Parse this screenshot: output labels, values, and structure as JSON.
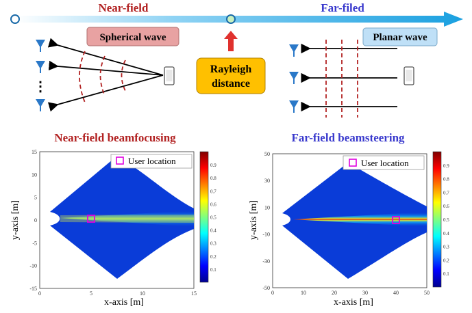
{
  "top": {
    "near_field_label": "Near-field",
    "far_field_label": "Far-filed",
    "spherical_wave_label": "Spherical wave",
    "planar_wave_label": "Planar wave",
    "rayleigh_line1": "Rayleigh",
    "rayleigh_line2": "distance",
    "ellipsis": "⋮"
  },
  "colors": {
    "near_red": "#b22222",
    "far_blue": "#3a3acd",
    "axis_arrow": "#1aa0e0",
    "spherical_bg": "#e8a2a2",
    "planar_bg": "#bfe0f7",
    "rayleigh_bg": "#ffc000",
    "wave_red": "#b22222"
  },
  "chart_data": [
    {
      "type": "heatmap",
      "title": "Near-field beamfocusing",
      "xlabel": "x-axis [m]",
      "ylabel": "y-axis [m]",
      "xlim": [
        0,
        15
      ],
      "ylim": [
        -15,
        15
      ],
      "xticks": [
        "0",
        "5",
        "10",
        "15"
      ],
      "yticks": [
        "15",
        "10",
        "5",
        "0",
        "-5",
        "-10",
        "-15"
      ],
      "colorbar_ticks": [
        "0.9",
        "0.8",
        "0.7",
        "0.6",
        "0.5",
        "0.4",
        "0.3",
        "0.2",
        "0.1"
      ],
      "colorbar_range": [
        0,
        1
      ],
      "legend": "User location",
      "legend_position": "top-right",
      "user_location": [
        5,
        0
      ]
    },
    {
      "type": "heatmap",
      "title": "Far-field beamsteering",
      "xlabel": "x-axis [m]",
      "ylabel": "y-axis [m]",
      "xlim": [
        0,
        50
      ],
      "ylim": [
        -50,
        50
      ],
      "xticks": [
        "0",
        "10",
        "20",
        "30",
        "40",
        "50"
      ],
      "yticks": [
        "50",
        "30",
        "10",
        "-10",
        "-30",
        "-50"
      ],
      "colorbar_ticks": [
        "0.9",
        "0.8",
        "0.7",
        "0.6",
        "0.5",
        "0.4",
        "0.3",
        "0.2",
        "0.1"
      ],
      "colorbar_range": [
        0,
        1
      ],
      "legend": "User location",
      "legend_position": "top-right",
      "user_location": [
        40,
        0
      ]
    }
  ]
}
